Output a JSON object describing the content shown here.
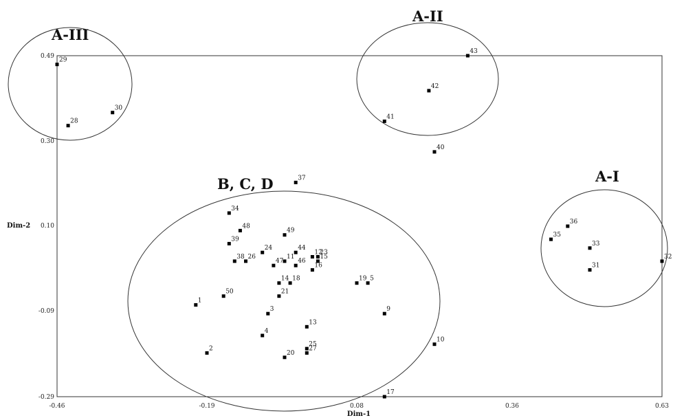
{
  "chart_data": {
    "type": "scatter",
    "xlabel": "Dim-1",
    "ylabel": "Dim-2",
    "xlim": [
      -0.46,
      0.63
    ],
    "ylim": [
      -0.29,
      0.49
    ],
    "xticks": [
      "-0.46",
      "-0.19",
      "0.08",
      "0.36",
      "0.63"
    ],
    "yticks": [
      "0.49",
      "0.30",
      "0.10",
      "-0.09",
      "-0.29"
    ],
    "grid": false,
    "points": [
      {
        "label": "1",
        "x": -0.21,
        "y": -0.08
      },
      {
        "label": "2",
        "x": -0.19,
        "y": -0.19
      },
      {
        "label": "3",
        "x": -0.08,
        "y": -0.1
      },
      {
        "label": "4",
        "x": -0.09,
        "y": -0.15
      },
      {
        "label": "5",
        "x": 0.1,
        "y": -0.03
      },
      {
        "label": "9",
        "x": 0.13,
        "y": -0.1
      },
      {
        "label": "10",
        "x": 0.22,
        "y": -0.17
      },
      {
        "label": "11",
        "x": -0.05,
        "y": 0.02
      },
      {
        "label": "12",
        "x": -0.0,
        "y": 0.03
      },
      {
        "label": "13",
        "x": -0.01,
        "y": -0.13
      },
      {
        "label": "14",
        "x": -0.06,
        "y": -0.03
      },
      {
        "label": "15",
        "x": 0.01,
        "y": 0.02
      },
      {
        "label": "16",
        "x": -0.0,
        "y": 0.0
      },
      {
        "label": "17",
        "x": 0.13,
        "y": -0.29
      },
      {
        "label": "18",
        "x": -0.04,
        "y": -0.03
      },
      {
        "label": "19",
        "x": 0.08,
        "y": -0.03
      },
      {
        "label": "20",
        "x": -0.05,
        "y": -0.2
      },
      {
        "label": "21",
        "x": -0.06,
        "y": -0.06
      },
      {
        "label": "23",
        "x": 0.01,
        "y": 0.03
      },
      {
        "label": "24",
        "x": -0.09,
        "y": 0.04
      },
      {
        "label": "25",
        "x": -0.01,
        "y": -0.18
      },
      {
        "label": "26",
        "x": -0.12,
        "y": 0.02
      },
      {
        "label": "27",
        "x": -0.01,
        "y": -0.19
      },
      {
        "label": "28",
        "x": -0.44,
        "y": 0.33
      },
      {
        "label": "29",
        "x": -0.46,
        "y": 0.47
      },
      {
        "label": "30",
        "x": -0.36,
        "y": 0.36
      },
      {
        "label": "31",
        "x": 0.5,
        "y": 0.0
      },
      {
        "label": "32",
        "x": 0.63,
        "y": 0.02
      },
      {
        "label": "33",
        "x": 0.5,
        "y": 0.05
      },
      {
        "label": "34",
        "x": -0.15,
        "y": 0.13
      },
      {
        "label": "35",
        "x": 0.43,
        "y": 0.07
      },
      {
        "label": "36",
        "x": 0.46,
        "y": 0.1
      },
      {
        "label": "37",
        "x": -0.03,
        "y": 0.2
      },
      {
        "label": "38",
        "x": -0.14,
        "y": 0.02
      },
      {
        "label": "39",
        "x": -0.15,
        "y": 0.06
      },
      {
        "label": "40",
        "x": 0.22,
        "y": 0.27
      },
      {
        "label": "41",
        "x": 0.13,
        "y": 0.34
      },
      {
        "label": "42",
        "x": 0.21,
        "y": 0.41
      },
      {
        "label": "43",
        "x": 0.28,
        "y": 0.49
      },
      {
        "label": "44",
        "x": -0.03,
        "y": 0.04
      },
      {
        "label": "46",
        "x": -0.03,
        "y": 0.01
      },
      {
        "label": "47",
        "x": -0.07,
        "y": 0.01
      },
      {
        "label": "48",
        "x": -0.13,
        "y": 0.09
      },
      {
        "label": "49",
        "x": -0.05,
        "y": 0.08
      },
      {
        "label": "50",
        "x": -0.16,
        "y": -0.06
      }
    ],
    "annotations": [
      "A-III",
      "A-II",
      "B, C, D",
      "A-I"
    ]
  }
}
